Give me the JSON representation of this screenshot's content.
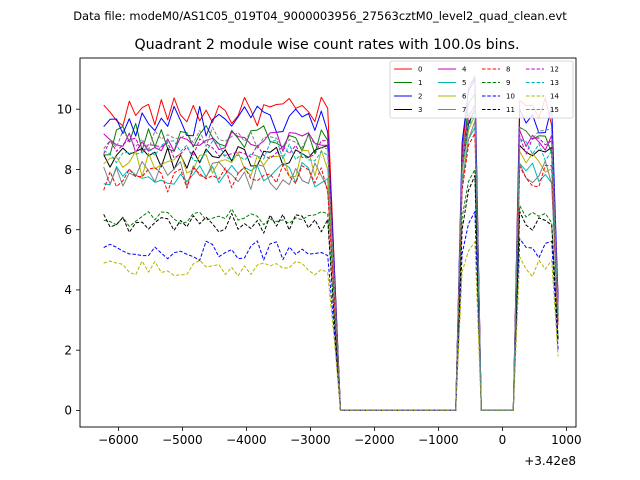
{
  "chart_data": {
    "type": "line",
    "suptitle": "Data file: modeM0/AS1C05_019T04_9000003956_27563cztM0_level2_quad_clean.evt",
    "title": "Quadrant 2 module wise count rates with 100.0s bins.",
    "xlabel": "",
    "ylabel": "",
    "x_offset_label": "+3.42e8",
    "xlim": [
      -6600,
      1150
    ],
    "ylim": [
      -0.55,
      11.7
    ],
    "x_ticks": [
      -6000,
      -5000,
      -4000,
      -3000,
      -2000,
      -1000,
      0,
      1000
    ],
    "x_tick_labels": [
      "−6000",
      "−5000",
      "−4000",
      "−3000",
      "−2000",
      "−1000",
      "0",
      "1000"
    ],
    "y_ticks": [
      0,
      2,
      4,
      6,
      8,
      10
    ],
    "y_tick_labels": [
      "0",
      "2",
      "4",
      "6",
      "8",
      "10"
    ],
    "legend_position": "upper-right",
    "x_start": -6230,
    "bin": 100,
    "n_points": 72,
    "gap_bins": [
      [
        37,
        55
      ],
      [
        59,
        64
      ]
    ],
    "spike_bins": [
      56,
      57,
      58
    ],
    "series": [
      {
        "name": "0",
        "color": "#ff0000",
        "dash": "solid",
        "base": 9.9,
        "noise": 0.5,
        "spike": [
          8.5,
          10.7,
          11.1
        ],
        "drop": 5.0
      },
      {
        "name": "1",
        "color": "#008000",
        "dash": "solid",
        "base": 9.0,
        "noise": 0.55,
        "spike": [
          8.1,
          10.2,
          10.5
        ],
        "drop": 4.8
      },
      {
        "name": "2",
        "color": "#0000ff",
        "dash": "solid",
        "base": 9.6,
        "noise": 0.5,
        "spike": [
          8.9,
          10.6,
          11.0
        ],
        "drop": 4.9
      },
      {
        "name": "3",
        "color": "#000000",
        "dash": "solid",
        "base": 8.4,
        "noise": 0.4,
        "spike": [
          8.0,
          9.5,
          10.0
        ],
        "drop": 4.2
      },
      {
        "name": "4",
        "color": "#c000c0",
        "dash": "solid",
        "base": 8.9,
        "noise": 0.35,
        "spike": [
          8.2,
          9.8,
          10.1
        ],
        "drop": 4.5
      },
      {
        "name": "5",
        "color": "#00b5b5",
        "dash": "solid",
        "base": 7.8,
        "noise": 0.45,
        "spike": [
          7.6,
          9.0,
          9.4
        ],
        "drop": 4.0
      },
      {
        "name": "6",
        "color": "#b5b500",
        "dash": "solid",
        "base": 8.2,
        "noise": 0.45,
        "spike": [
          7.9,
          9.3,
          9.8
        ],
        "drop": 4.1
      },
      {
        "name": "7",
        "color": "#808080",
        "dash": "solid",
        "base": 7.8,
        "noise": 0.5,
        "spike": [
          7.5,
          9.0,
          9.6
        ],
        "drop": 3.9
      },
      {
        "name": "8",
        "color": "#ff0000",
        "dash": "dashed",
        "base": 7.7,
        "noise": 0.45,
        "spike": [
          7.3,
          8.8,
          9.2
        ],
        "drop": 3.8
      },
      {
        "name": "9",
        "color": "#008000",
        "dash": "dashed",
        "base": 6.4,
        "noise": 0.3,
        "spike": [
          6.4,
          7.6,
          8.0
        ],
        "drop": 3.2
      },
      {
        "name": "10",
        "color": "#0000ff",
        "dash": "dashed",
        "base": 5.3,
        "noise": 0.35,
        "spike": [
          5.2,
          6.2,
          6.6
        ],
        "drop": 2.7
      },
      {
        "name": "11",
        "color": "#000000",
        "dash": "dashed",
        "base": 6.2,
        "noise": 0.35,
        "spike": [
          6.0,
          7.3,
          7.8
        ],
        "drop": 3.1
      },
      {
        "name": "12",
        "color": "#c000c0",
        "dash": "dashed",
        "base": 8.7,
        "noise": 0.35,
        "spike": [
          8.1,
          9.6,
          10.0
        ],
        "drop": 4.4
      },
      {
        "name": "13",
        "color": "#00b5b5",
        "dash": "dashed",
        "base": 8.6,
        "noise": 0.4,
        "spike": [
          8.0,
          9.4,
          9.9
        ],
        "drop": 4.3
      },
      {
        "name": "14",
        "color": "#b5b500",
        "dash": "dashed",
        "base": 4.7,
        "noise": 0.3,
        "spike": [
          4.6,
          5.3,
          5.6
        ],
        "drop": 2.4
      },
      {
        "name": "15",
        "color": "#808080",
        "dash": "dashed",
        "base": 9.0,
        "noise": 0.4,
        "spike": [
          8.2,
          9.7,
          10.2
        ],
        "drop": 4.5
      }
    ]
  }
}
